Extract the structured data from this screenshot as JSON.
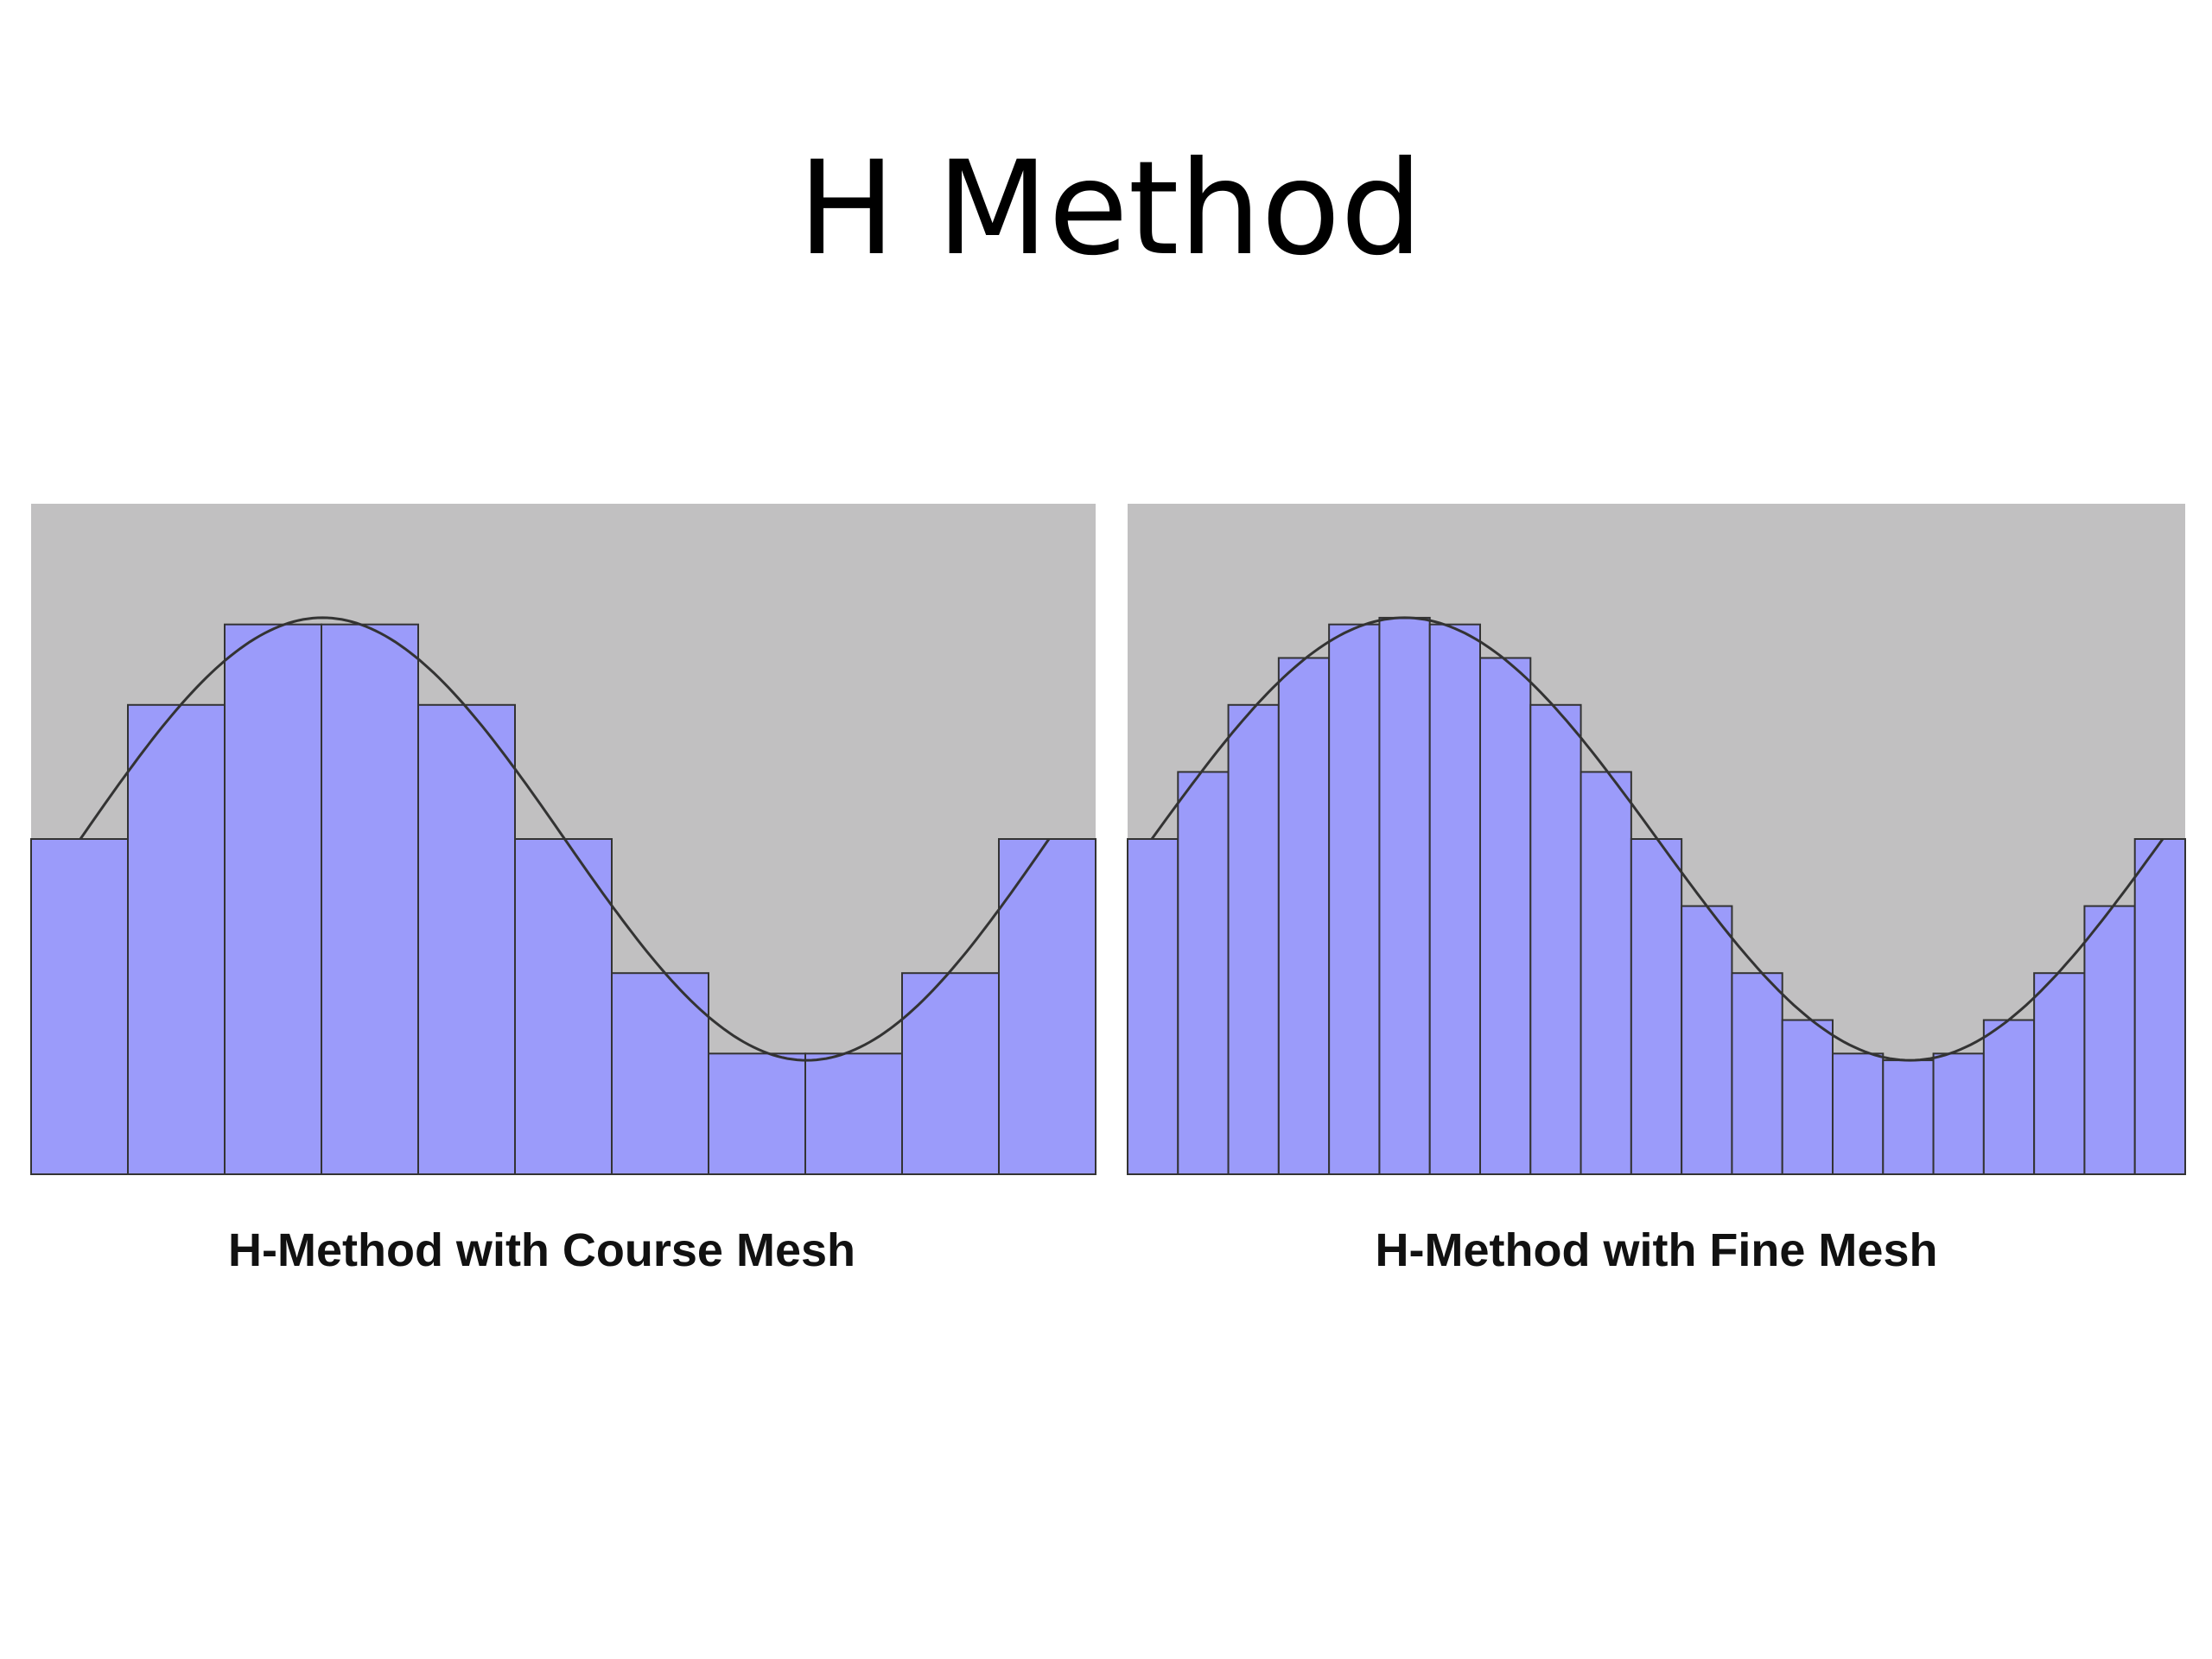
{
  "title": "H Method",
  "chart_data": [
    {
      "type": "bar",
      "title": "H-Method with Course Mesh",
      "color": "#9b9bfa",
      "values": [
        50,
        70,
        82,
        82,
        70,
        50,
        30,
        18,
        18,
        30,
        50
      ],
      "ylim": [
        0,
        100
      ]
    },
    {
      "type": "bar",
      "title": "H-Method with Fine Mesh",
      "color": "#9b9bfa",
      "values": [
        50,
        60,
        70,
        77,
        82,
        83,
        82,
        77,
        70,
        60,
        50,
        40,
        30,
        23,
        18,
        17,
        18,
        23,
        30,
        40,
        50
      ],
      "ylim": [
        0,
        100
      ]
    }
  ]
}
